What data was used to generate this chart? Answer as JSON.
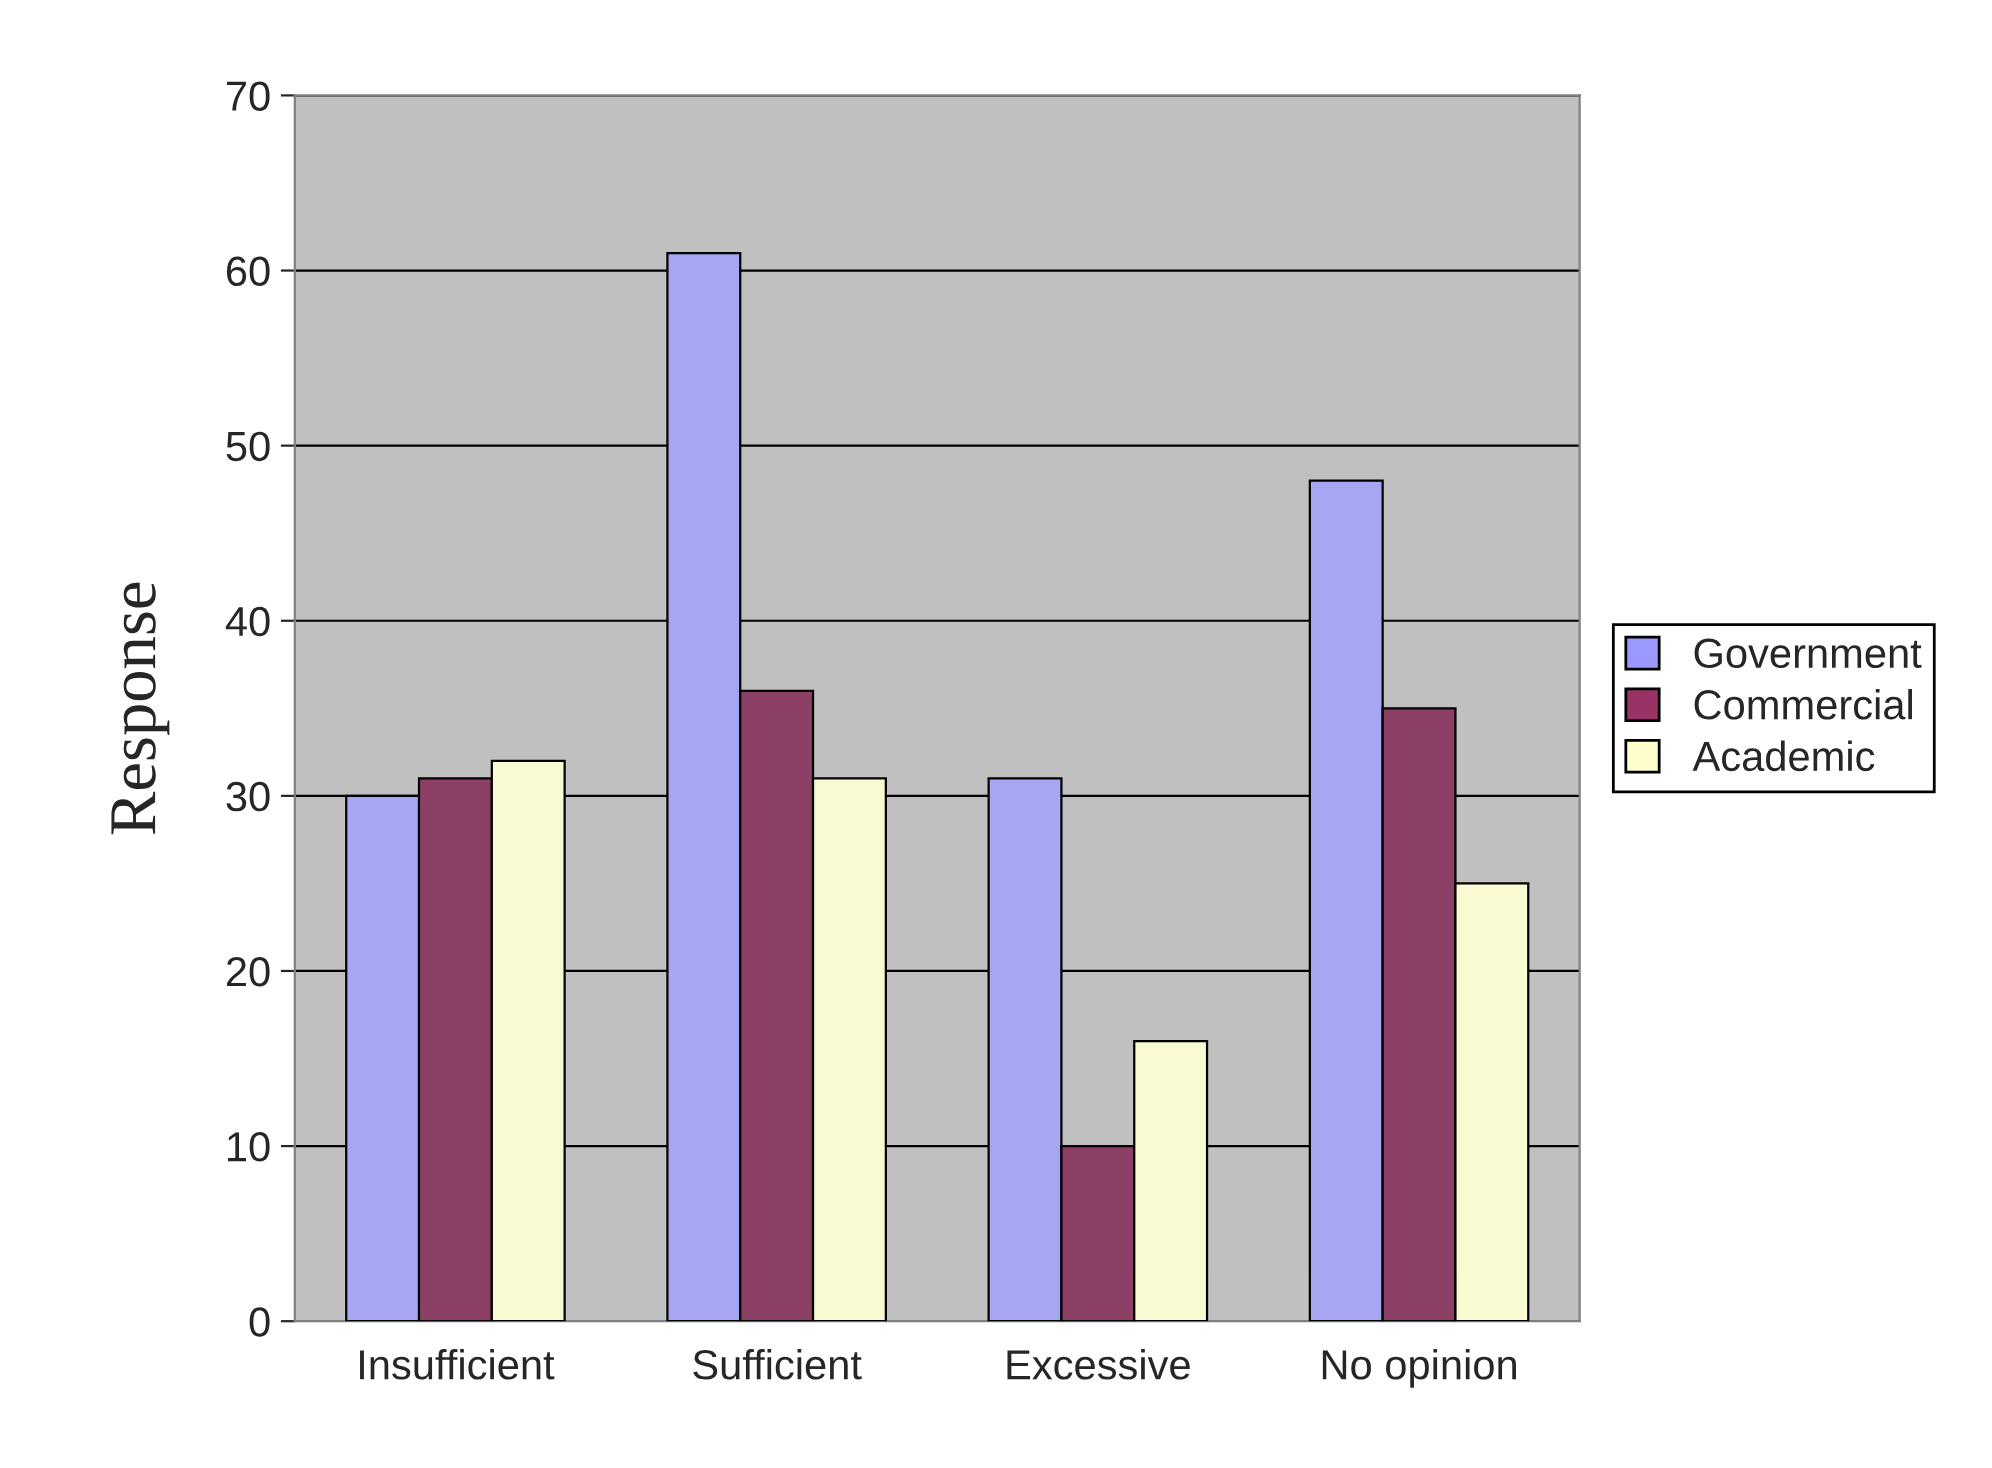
{
  "chart_data": {
    "type": "bar",
    "ylabel": "Response",
    "categories": [
      "Insufficient",
      "Sufficient",
      "Excessive",
      "No opinion"
    ],
    "series": [
      {
        "name": "Government",
        "color": "#9999ff",
        "values": [
          30,
          61,
          31,
          48
        ]
      },
      {
        "name": "Commercial",
        "color": "#993366",
        "values": [
          31,
          36,
          10,
          35
        ]
      },
      {
        "name": "Academic",
        "color": "#ffffcc",
        "values": [
          32,
          31,
          16,
          25
        ]
      }
    ],
    "ylim": [
      0,
      70
    ],
    "yticks": [
      0,
      10,
      20,
      30,
      40,
      50,
      60,
      70
    ],
    "grid": "y",
    "legend": "right"
  }
}
